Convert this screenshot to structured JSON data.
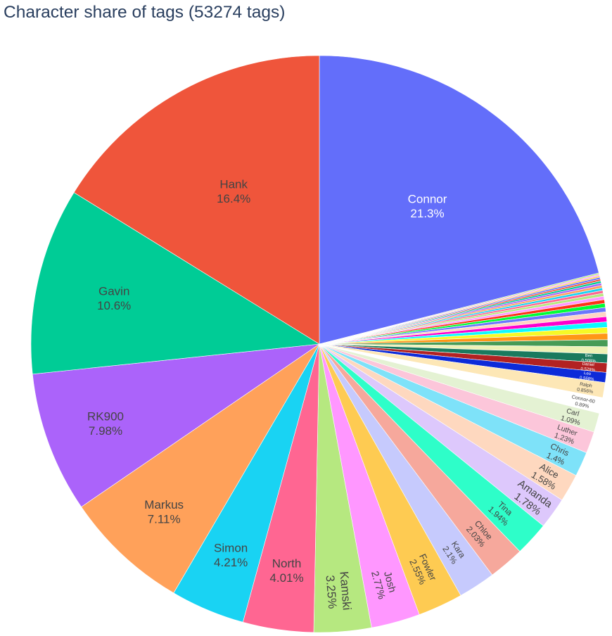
{
  "chart_data": {
    "type": "pie",
    "title": "Character share of tags (53274 tags)",
    "total_tags": 53274,
    "direction": "clockwise",
    "start_angle_deg": 0,
    "labels_shown": [
      "label",
      "percent"
    ],
    "slices": [
      {
        "label": "Connor",
        "percent": "21.3%",
        "value": 21.3,
        "color": "#636efa",
        "text_color": "#ffffff"
      },
      {
        "label": "",
        "percent": "",
        "value": 0.08,
        "color": "#b6e880",
        "text_color": "#444444"
      },
      {
        "label": "",
        "percent": "",
        "value": 0.08,
        "color": "#ff97ff",
        "text_color": "#444444"
      },
      {
        "label": "",
        "percent": "",
        "value": 0.09,
        "color": "#fecb52",
        "text_color": "#444444"
      },
      {
        "label": "",
        "percent": "",
        "value": 0.1,
        "color": "#636efa",
        "text_color": "#444444"
      },
      {
        "label": "",
        "percent": "",
        "value": 0.11,
        "color": "#ef553b",
        "text_color": "#444444"
      },
      {
        "label": "",
        "percent": "",
        "value": 0.12,
        "color": "#00cc96",
        "text_color": "#444444"
      },
      {
        "label": "",
        "percent": "",
        "value": 0.13,
        "color": "#ab63fa",
        "text_color": "#444444"
      },
      {
        "label": "",
        "percent": "",
        "value": 0.14,
        "color": "#ffa15a",
        "text_color": "#444444"
      },
      {
        "label": "",
        "percent": "",
        "value": 0.15,
        "color": "#19d3f3",
        "text_color": "#444444"
      },
      {
        "label": "",
        "percent": "",
        "value": 0.16,
        "color": "#ff6692",
        "text_color": "#444444"
      },
      {
        "label": "",
        "percent": "",
        "value": 0.17,
        "color": "#b6e880",
        "text_color": "#444444"
      },
      {
        "label": "",
        "percent": "",
        "value": 0.19,
        "color": "#ff97ff",
        "text_color": "#444444"
      },
      {
        "label": "",
        "percent": "",
        "value": 0.21,
        "color": "#fd3216",
        "text_color": "#444444"
      },
      {
        "label": "",
        "percent": "",
        "value": 0.23,
        "color": "#00fe35",
        "text_color": "#444444"
      },
      {
        "label": "",
        "percent": "",
        "value": 0.25,
        "color": "#6a76fc",
        "text_color": "#444444"
      },
      {
        "label": "",
        "percent": "",
        "value": 0.27,
        "color": "#fed4c4",
        "text_color": "#444444"
      },
      {
        "label": "",
        "percent": "",
        "value": 0.29,
        "color": "#fe00ce",
        "text_color": "#444444"
      },
      {
        "label": "",
        "percent": "",
        "value": 0.31,
        "color": "#0df9ff",
        "text_color": "#444444"
      },
      {
        "label": "",
        "percent": "",
        "value": 0.33,
        "color": "#f6f926",
        "text_color": "#444444"
      },
      {
        "label": "",
        "percent": "",
        "value": 0.36,
        "color": "#ff9616",
        "text_color": "#444444"
      },
      {
        "label": "",
        "percent": "",
        "value": 0.39,
        "color": "#479b55",
        "text_color": "#444444"
      },
      {
        "label": "",
        "percent": "",
        "value": 0.41,
        "color": "#eef1b5",
        "text_color": "#444444"
      },
      {
        "label": "Ben",
        "percent": "0.508%",
        "value": 0.508,
        "color": "#1a7a5e",
        "text_color": "#ffffff"
      },
      {
        "label": "Daniel",
        "percent": "0.529%",
        "value": 0.529,
        "color": "#b22222",
        "text_color": "#ffffff"
      },
      {
        "label": "Leo",
        "percent": "0.568%",
        "value": 0.568,
        "color": "#0d2bd9",
        "text_color": "#ffffff"
      },
      {
        "label": "Ralph",
        "percent": "0.856%",
        "value": 0.856,
        "color": "#fde7b6",
        "text_color": "#444444"
      },
      {
        "label": "Connor-60",
        "percent": "0.89%",
        "value": 0.89,
        "color": "#ffffff",
        "text_color": "#444444"
      },
      {
        "label": "Carl",
        "percent": "1.09%",
        "value": 1.09,
        "color": "#e4f2d3",
        "text_color": "#444444"
      },
      {
        "label": "Luther",
        "percent": "1.23%",
        "value": 1.23,
        "color": "#fcc6da",
        "text_color": "#444444"
      },
      {
        "label": "Chris",
        "percent": "1.4%",
        "value": 1.4,
        "color": "#7ee2f9",
        "text_color": "#444444"
      },
      {
        "label": "Alice",
        "percent": "1.58%",
        "value": 1.58,
        "color": "#fed8bf",
        "text_color": "#444444"
      },
      {
        "label": "Amanda",
        "percent": "1.78%",
        "value": 1.78,
        "color": "#ddc8fc",
        "text_color": "#444444"
      },
      {
        "label": "Tina",
        "percent": "1.94%",
        "value": 1.94,
        "color": "#2efec9",
        "text_color": "#444444"
      },
      {
        "label": "Chloe",
        "percent": "2.03%",
        "value": 2.03,
        "color": "#f6a89c",
        "text_color": "#444444"
      },
      {
        "label": "Kara",
        "percent": "2.1%",
        "value": 2.1,
        "color": "#c6cafd",
        "text_color": "#444444"
      },
      {
        "label": "Fowler",
        "percent": "2.55%",
        "value": 2.55,
        "color": "#fecb52",
        "text_color": "#444444"
      },
      {
        "label": "Josh",
        "percent": "2.77%",
        "value": 2.77,
        "color": "#ff97ff",
        "text_color": "#444444"
      },
      {
        "label": "Kamski",
        "percent": "3.25%",
        "value": 3.25,
        "color": "#b6e880",
        "text_color": "#444444"
      },
      {
        "label": "North",
        "percent": "4.01%",
        "value": 4.01,
        "color": "#ff6692",
        "text_color": "#444444"
      },
      {
        "label": "Simon",
        "percent": "4.21%",
        "value": 4.21,
        "color": "#19d3f3",
        "text_color": "#444444"
      },
      {
        "label": "Markus",
        "percent": "7.11%",
        "value": 7.11,
        "color": "#ffa15a",
        "text_color": "#444444"
      },
      {
        "label": "RK900",
        "percent": "7.98%",
        "value": 7.98,
        "color": "#ab63fa",
        "text_color": "#444444"
      },
      {
        "label": "Gavin",
        "percent": "10.6%",
        "value": 10.6,
        "color": "#00cc96",
        "text_color": "#444444"
      },
      {
        "label": "Hank",
        "percent": "16.4%",
        "value": 16.4,
        "color": "#ef553b",
        "text_color": "#444444"
      }
    ]
  }
}
